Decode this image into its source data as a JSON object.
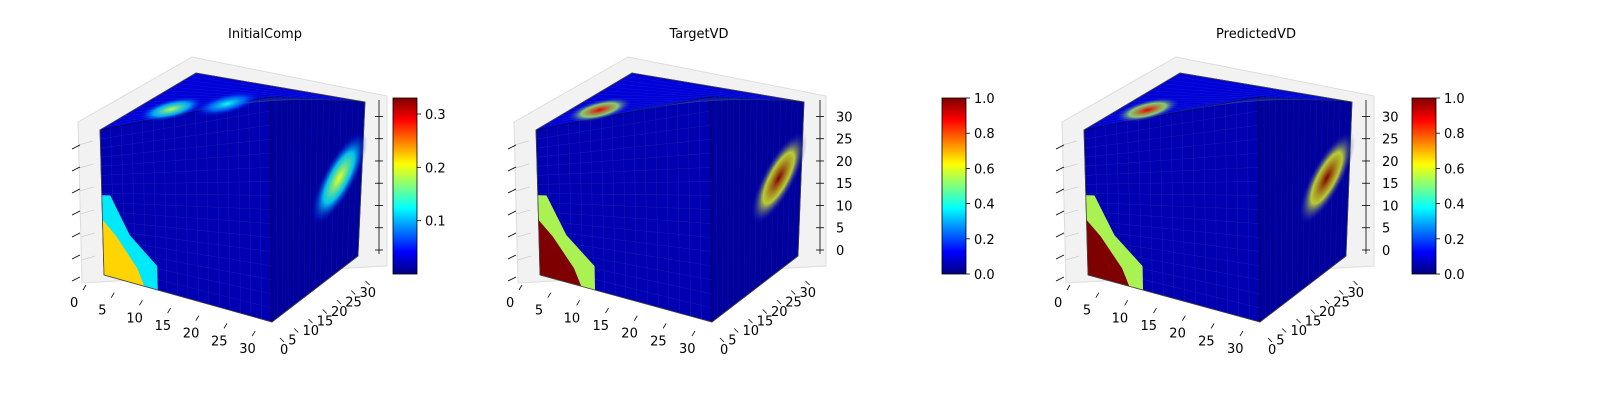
{
  "figure": {
    "panels": [
      {
        "title": "InitialComp"
      },
      {
        "title": "TargetVD"
      },
      {
        "title": "PredictedVD"
      }
    ]
  },
  "colors": {
    "colormap": "jet",
    "jet_stops": [
      "#00007f",
      "#0000ff",
      "#007fff",
      "#00ffff",
      "#7fff7f",
      "#ffff00",
      "#ff7f00",
      "#ff0000",
      "#7f0000"
    ]
  },
  "chart_data": [
    {
      "type": "voxel-3d",
      "title": "InitialComp",
      "x_ticks": [
        "0",
        "5",
        "10",
        "15",
        "20",
        "25",
        "30"
      ],
      "y_ticks": [
        "0",
        "5",
        "10",
        "15",
        "20",
        "25",
        "30"
      ],
      "z_ticks": [],
      "xlim": [
        0,
        32
      ],
      "ylim": [
        0,
        32
      ],
      "zlim": [
        0,
        32
      ],
      "colorbar": {
        "ticks": [
          "0.1",
          "0.2",
          "0.3"
        ],
        "range": [
          0.0,
          0.33
        ]
      },
      "hotspots": [
        {
          "face": "top",
          "u": 0.25,
          "v": 0.3,
          "value": 0.18
        },
        {
          "face": "top",
          "u": 0.55,
          "v": 0.35,
          "value": 0.13
        },
        {
          "face": "front-bottom-left",
          "value": 0.22
        },
        {
          "face": "right",
          "u": 0.75,
          "v": 0.45,
          "value": 0.2
        }
      ]
    },
    {
      "type": "voxel-3d",
      "title": "TargetVD",
      "x_ticks": [
        "0",
        "5",
        "10",
        "15",
        "20",
        "25",
        "30"
      ],
      "y_ticks": [
        "0",
        "5",
        "10",
        "15",
        "20",
        "25",
        "30"
      ],
      "z_ticks": [
        "0",
        "5",
        "10",
        "15",
        "20",
        "25",
        "30"
      ],
      "xlim": [
        0,
        32
      ],
      "ylim": [
        0,
        32
      ],
      "zlim": [
        0,
        32
      ],
      "colorbar": {
        "ticks": [
          "0.0",
          "0.2",
          "0.4",
          "0.6",
          "0.8",
          "1.0"
        ],
        "range": [
          0.0,
          1.0
        ]
      },
      "hotspots": [
        {
          "face": "top",
          "u": 0.2,
          "v": 0.3,
          "value": 0.9
        },
        {
          "face": "front-bottom-left",
          "value": 1.0
        },
        {
          "face": "right",
          "u": 0.75,
          "v": 0.45,
          "value": 1.0
        }
      ]
    },
    {
      "type": "voxel-3d",
      "title": "PredictedVD",
      "x_ticks": [
        "0",
        "5",
        "10",
        "15",
        "20",
        "25",
        "30"
      ],
      "y_ticks": [
        "0",
        "5",
        "10",
        "15",
        "20",
        "25",
        "30"
      ],
      "z_ticks": [
        "0",
        "5",
        "10",
        "15",
        "20",
        "25",
        "30"
      ],
      "xlim": [
        0,
        32
      ],
      "ylim": [
        0,
        32
      ],
      "zlim": [
        0,
        32
      ],
      "colorbar": {
        "ticks": [
          "0.0",
          "0.2",
          "0.4",
          "0.6",
          "0.8",
          "1.0"
        ],
        "range": [
          0.0,
          1.0
        ]
      },
      "hotspots": [
        {
          "face": "top",
          "u": 0.2,
          "v": 0.3,
          "value": 0.9
        },
        {
          "face": "front-bottom-left",
          "value": 1.0
        },
        {
          "face": "right",
          "u": 0.75,
          "v": 0.45,
          "value": 1.0
        }
      ]
    }
  ]
}
